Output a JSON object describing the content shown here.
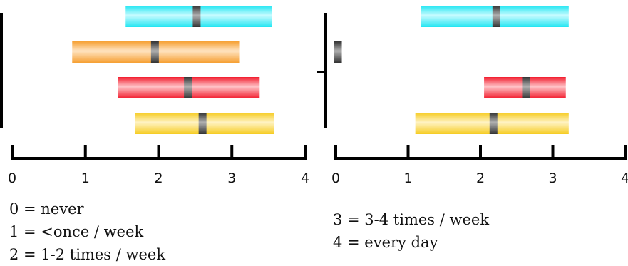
{
  "colors": {
    "cyan": "#22e6f2",
    "orange": "#f6a033",
    "red": "#f21d2e",
    "yellow": "#f6cc22",
    "median": "#333333"
  },
  "chart_data": [
    {
      "type": "range-bar",
      "xlim": [
        0,
        4
      ],
      "x_ticks": [
        "0",
        "1",
        "2",
        "3",
        "4"
      ],
      "y_axis_tick_values": [],
      "rows": [
        {
          "color": "cyan",
          "low": 1.55,
          "median": 2.52,
          "high": 3.55
        },
        {
          "color": "orange",
          "low": 0.82,
          "median": 1.95,
          "high": 3.1
        },
        {
          "color": "red",
          "low": 1.45,
          "median": 2.4,
          "high": 3.38
        },
        {
          "color": "yellow",
          "low": 1.68,
          "median": 2.6,
          "high": 3.58
        }
      ]
    },
    {
      "type": "range-bar",
      "xlim": [
        0,
        4
      ],
      "x_ticks": [
        "0",
        "1",
        "2",
        "3",
        "4"
      ],
      "rows": [
        {
          "color": "cyan",
          "low": 1.18,
          "median": 2.22,
          "high": 3.22
        },
        {
          "color": "median",
          "low": 0,
          "median": 0.03,
          "high": 0.08
        },
        {
          "color": "red",
          "low": 2.05,
          "median": 2.63,
          "high": 3.18
        },
        {
          "color": "yellow",
          "low": 1.1,
          "median": 2.18,
          "high": 3.22
        }
      ]
    }
  ],
  "legend": {
    "left": [
      "0 = never",
      "1 = <once / week",
      "2 = 1-2 times / week"
    ],
    "right": [
      "3 = 3-4 times / week",
      "4 = every day"
    ]
  }
}
